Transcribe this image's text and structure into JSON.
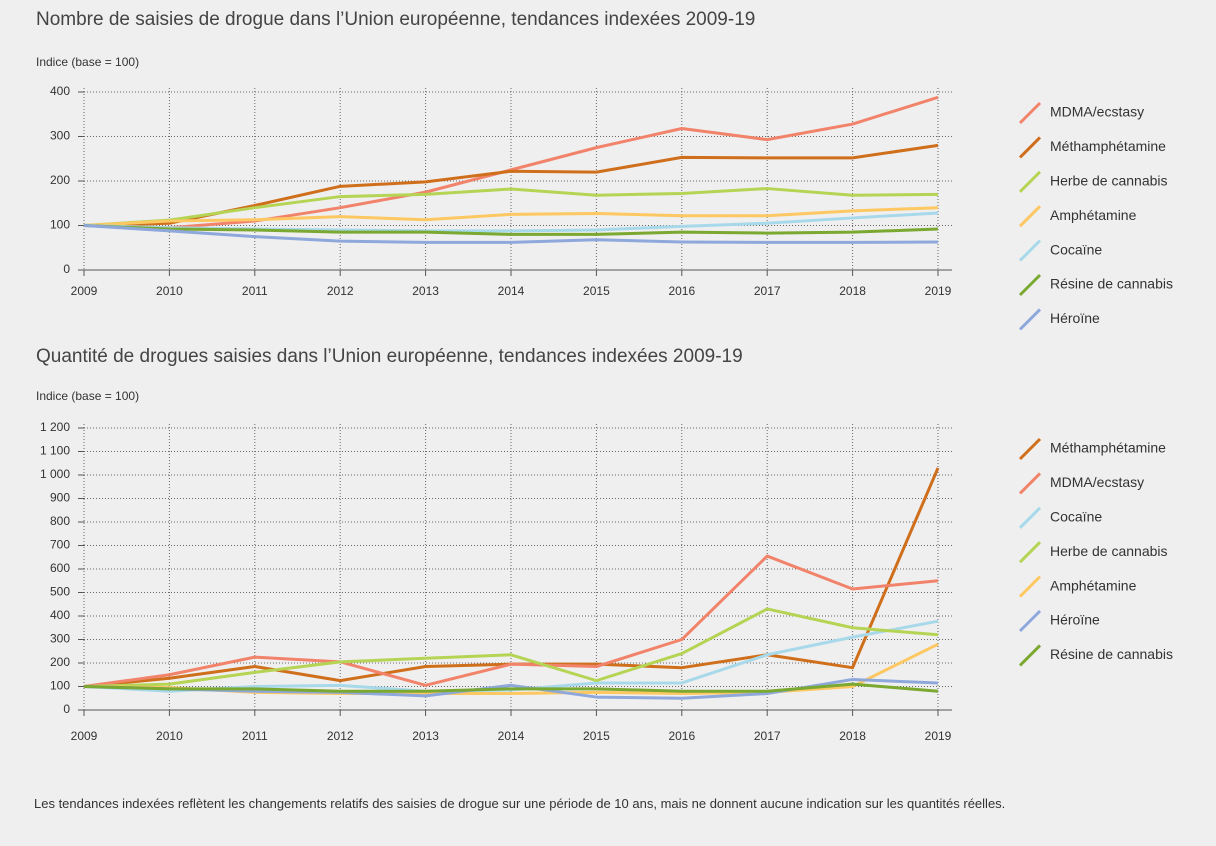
{
  "chart_data": [
    {
      "type": "line",
      "title": "Nombre de saisies de drogue dans l’Union européenne, tendances indexées 2009-19",
      "ylabel": "Indice (base = 100)",
      "x": [
        2009,
        2010,
        2011,
        2012,
        2013,
        2014,
        2015,
        2016,
        2017,
        2018,
        2019
      ],
      "xlim": [
        2009,
        2019
      ],
      "xticks": [
        2009,
        2010,
        2011,
        2012,
        2013,
        2014,
        2015,
        2016,
        2017,
        2018,
        2019
      ],
      "ylim": [
        0,
        400
      ],
      "yticks": [
        0,
        100,
        200,
        300,
        400
      ],
      "grid": true,
      "legend": "right",
      "series": [
        {
          "name": "MDMA/ecstasy",
          "color": "#f2836b",
          "values": [
            100,
            95,
            110,
            140,
            175,
            225,
            275,
            318,
            293,
            328,
            388
          ]
        },
        {
          "name": "Méthamphétamine",
          "color": "#cf6f1c",
          "values": [
            100,
            105,
            145,
            188,
            198,
            222,
            220,
            253,
            252,
            252,
            280
          ]
        },
        {
          "name": "Herbe de cannabis",
          "color": "#b5d454",
          "values": [
            100,
            112,
            140,
            165,
            170,
            182,
            168,
            172,
            183,
            168,
            170
          ]
        },
        {
          "name": "Amphétamine",
          "color": "#fdc862",
          "values": [
            100,
            110,
            113,
            120,
            113,
            125,
            127,
            122,
            122,
            133,
            140
          ]
        },
        {
          "name": "Cocaïne",
          "color": "#a8d9ea",
          "values": [
            100,
            95,
            92,
            90,
            88,
            88,
            90,
            98,
            105,
            117,
            128
          ]
        },
        {
          "name": "Résine de cannabis",
          "color": "#7aa830",
          "values": [
            100,
            92,
            90,
            85,
            85,
            80,
            80,
            85,
            83,
            85,
            92
          ]
        },
        {
          "name": "Héroïne",
          "color": "#8ea8dc",
          "values": [
            100,
            88,
            75,
            65,
            62,
            62,
            68,
            63,
            62,
            62,
            63
          ]
        }
      ]
    },
    {
      "type": "line",
      "title": "Quantité de drogues saisies dans l’Union européenne, tendances indexées 2009-19",
      "ylabel": "Indice (base = 100)",
      "x": [
        2009,
        2010,
        2011,
        2012,
        2013,
        2014,
        2015,
        2016,
        2017,
        2018,
        2019
      ],
      "xlim": [
        2009,
        2019
      ],
      "xticks": [
        2009,
        2010,
        2011,
        2012,
        2013,
        2014,
        2015,
        2016,
        2017,
        2018,
        2019
      ],
      "ylim": [
        0,
        1200
      ],
      "yticks": [
        0,
        100,
        200,
        300,
        400,
        500,
        600,
        700,
        800,
        900,
        {
          "value": 1000,
          "label": "1 000"
        },
        {
          "value": 1100,
          "label": "1 100"
        },
        {
          "value": 1200,
          "label": "1 200"
        }
      ],
      "grid": true,
      "legend": "right",
      "series": [
        {
          "name": "Méthamphétamine",
          "color": "#cf6f1c",
          "values": [
            100,
            135,
            185,
            125,
            185,
            195,
            195,
            180,
            235,
            180,
            1030
          ]
        },
        {
          "name": "MDMA/ecstasy",
          "color": "#f2836b",
          "values": [
            100,
            150,
            225,
            205,
            105,
            195,
            185,
            300,
            655,
            515,
            550
          ]
        },
        {
          "name": "Cocaïne",
          "color": "#a8d9ea",
          "values": [
            100,
            80,
            100,
            105,
            80,
            85,
            115,
            115,
            235,
            310,
            378
          ]
        },
        {
          "name": "Herbe de cannabis",
          "color": "#b5d454",
          "values": [
            100,
            110,
            160,
            205,
            220,
            235,
            125,
            240,
            430,
            350,
            320
          ]
        },
        {
          "name": "Amphétamine",
          "color": "#fdc862",
          "values": [
            100,
            95,
            75,
            70,
            70,
            70,
            75,
            70,
            75,
            100,
            280
          ]
        },
        {
          "name": "Héroïne",
          "color": "#8ea8dc",
          "values": [
            100,
            90,
            80,
            75,
            60,
            105,
            55,
            50,
            70,
            130,
            115
          ]
        },
        {
          "name": "Résine de cannabis",
          "color": "#7aa830",
          "values": [
            100,
            90,
            90,
            80,
            80,
            90,
            90,
            80,
            80,
            110,
            80
          ]
        }
      ]
    }
  ],
  "note": "Les tendances indexées reflètent les changements relatifs des saisies de drogue sur une période de 10 ans, mais ne donnent aucune indication sur les quantités réelles."
}
